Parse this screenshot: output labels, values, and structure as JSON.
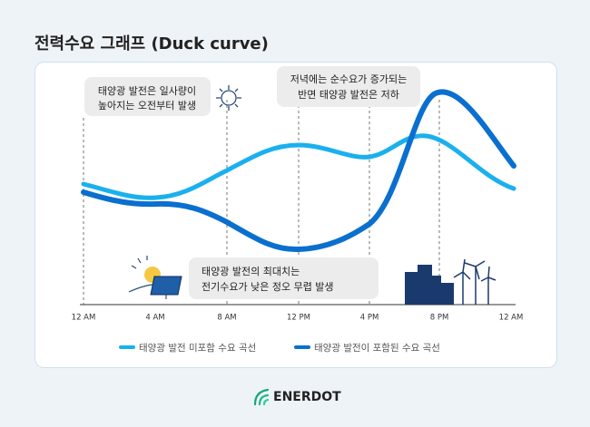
{
  "title": "전력수요 그래프 (Duck curve)",
  "x_labels": [
    "12 AM",
    "4 AM",
    "8 AM",
    "12 PM",
    "4 PM",
    "8 PM",
    "12 AM"
  ],
  "annotations": [
    [
      "태양광 발전은 일사량이",
      "높아지는 오전부터 발생"
    ],
    [
      "저녁에는 순수요가 증가되는",
      "반면 태양광 발전은 저하"
    ],
    [
      "태양광 발전의 최대치는",
      "전기수요가 낮은 정오 무렵 발생"
    ]
  ],
  "legend": [
    "태양광 발전 미포함 수요 곡선",
    "태양광 발전이 포함된 수요 곡선"
  ],
  "brand": "ENERDOT"
}
